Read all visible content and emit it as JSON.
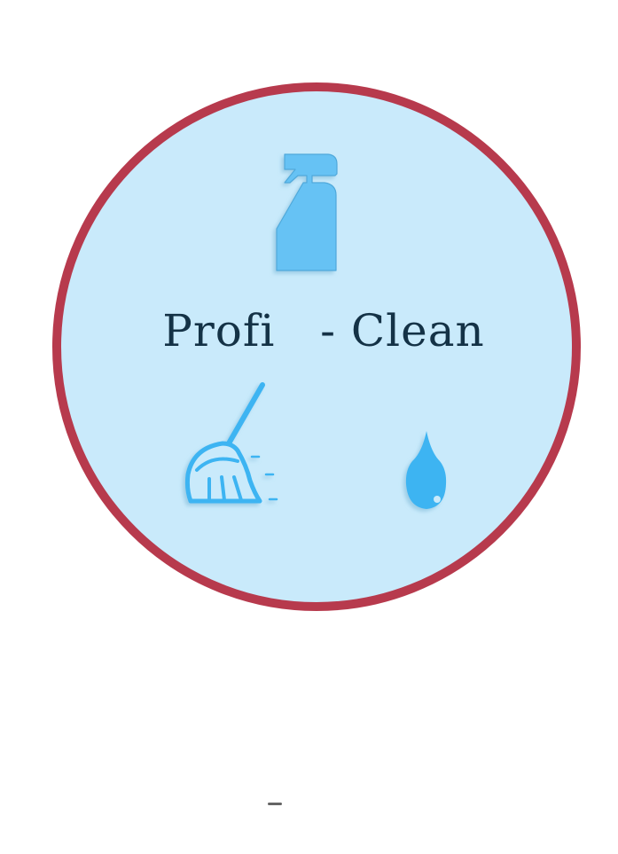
{
  "logo": {
    "brand_left": "Profi",
    "brand_right": "- Clean",
    "colors": {
      "ring": "#b73a4d",
      "disc_fill": "#c9eafb",
      "icon_blue": "#3cb4f2",
      "spray_blue": "#66c2f4",
      "text": "#143246"
    },
    "icons": [
      "spray-bottle-icon",
      "broom-icon",
      "water-drop-icon"
    ]
  }
}
